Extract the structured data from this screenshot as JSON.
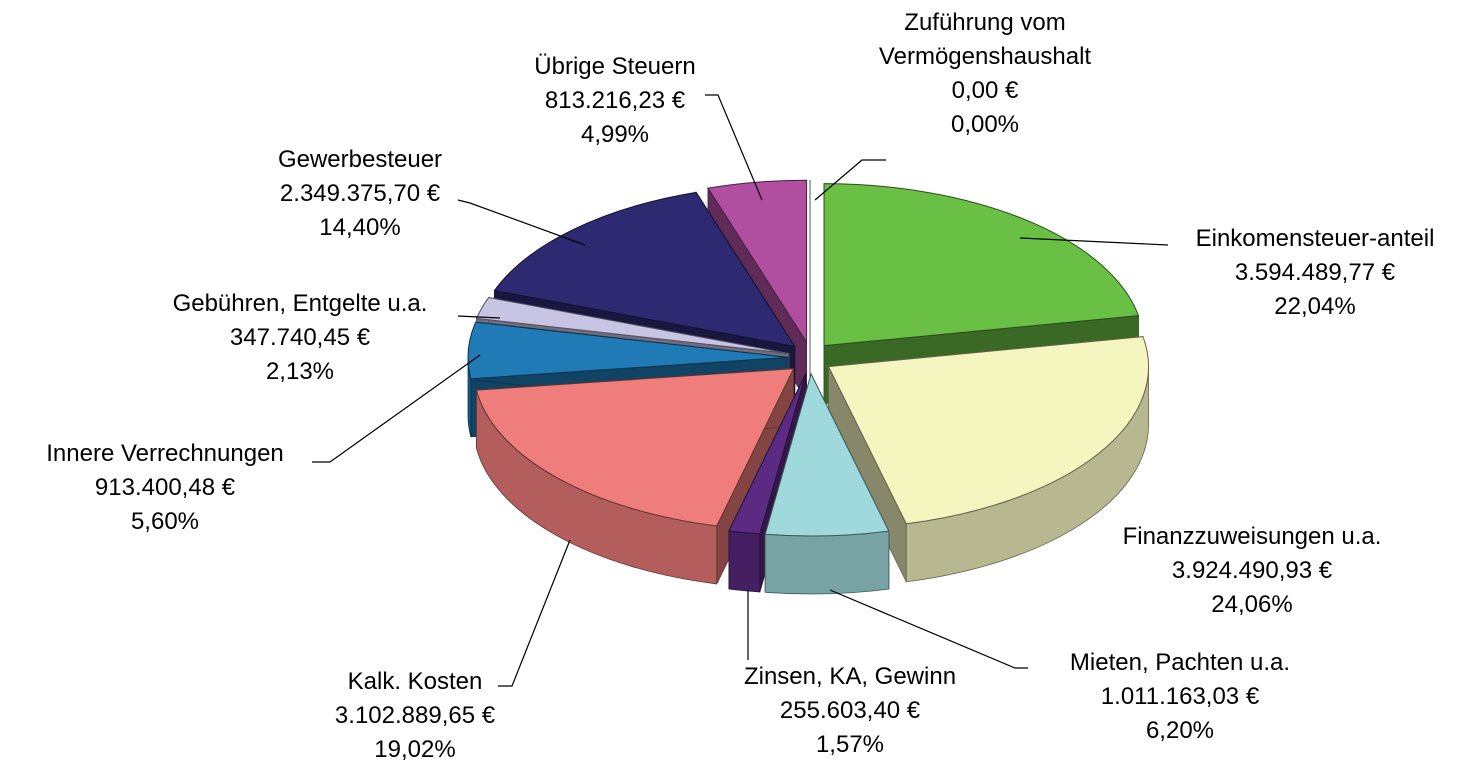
{
  "chart_data": {
    "type": "pie3d",
    "categories": [
      "Zuführung vom Vermögenshaushalt",
      "Einkomensteuer-anteil",
      "Finanzzuweisungen u.a.",
      "Mieten, Pachten u.a.",
      "Zinsen, KA, Gewinn",
      "Kalk. Kosten",
      "Innere Verrechnungen",
      "Gebühren, Entgelte u.a.",
      "Gewerbesteuer",
      "Übrige Steuern"
    ],
    "values": [
      0,
      3594489.77,
      3924490.93,
      1011163.03,
      255603.4,
      3102889.65,
      913400.48,
      347740.45,
      2349375.7,
      813216.23
    ],
    "value_labels": [
      "0,00 €",
      "3.594.489,77 €",
      "3.924.490,93 €",
      "1.011.163,03 €",
      "255.603,40 €",
      "3.102.889,65 €",
      "913.400,48 €",
      "347.740,45 €",
      "2.349.375,70 €",
      "813.216,23 €"
    ],
    "percentages": [
      0,
      22.04,
      24.06,
      6.2,
      1.57,
      19.02,
      5.6,
      2.13,
      14.4,
      4.99
    ],
    "percentage_labels": [
      "0,00%",
      "22,04%",
      "24,06%",
      "6,20%",
      "1,57%",
      "19,02%",
      "5,60%",
      "2,13%",
      "14,40%",
      "4,99%"
    ],
    "colors": [
      "#ffffff",
      "#6abf45",
      "#f5f5c0",
      "#9fd9db",
      "#5b2a82",
      "#ef7d7b",
      "#1f7ab6",
      "#c8c4e4",
      "#2e2a72",
      "#b04fa0"
    ]
  }
}
